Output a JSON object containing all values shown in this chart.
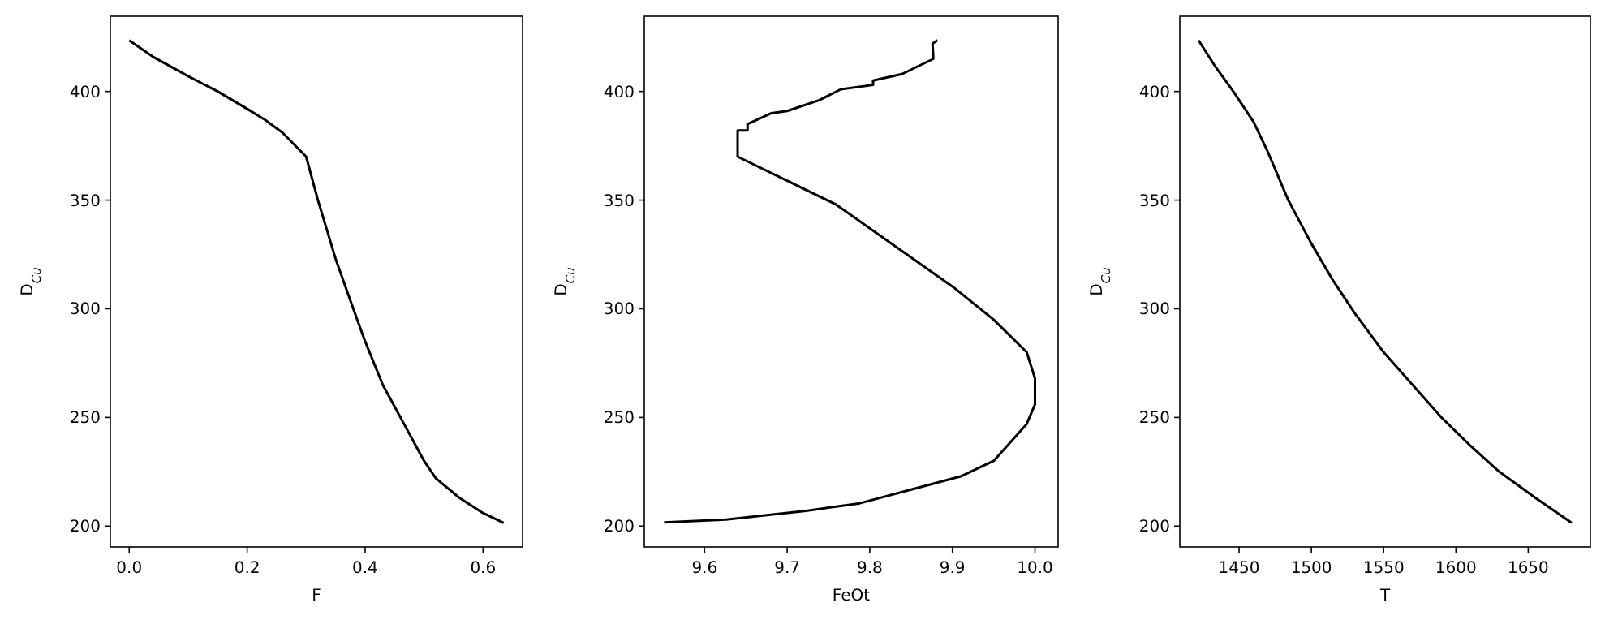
{
  "chart_data": [
    {
      "type": "line",
      "xlabel": "F",
      "ylabel": "D$_{Cu}$",
      "xlim": [
        -0.032,
        0.667
      ],
      "ylim": [
        190.4,
        434.6
      ],
      "xticks": [
        {
          "value": 0,
          "label": "0.0"
        },
        {
          "value": 0.2,
          "label": "0.2"
        },
        {
          "value": 0.4,
          "label": "0.4"
        },
        {
          "value": 0.6,
          "label": "0.6"
        }
      ],
      "yticks": [
        200,
        250,
        300,
        350,
        400
      ],
      "grid": false,
      "series": [
        {
          "color": "#000000",
          "x": [
            0,
            0.04,
            0.1,
            0.15,
            0.2,
            0.23,
            0.26,
            0.3,
            0.32,
            0.35,
            0.38,
            0.4,
            0.43,
            0.46,
            0.5,
            0.52,
            0.56,
            0.6,
            0.635
          ],
          "values": [
            423.5,
            416,
            407,
            400,
            392,
            387,
            381,
            370,
            350,
            323,
            300,
            285,
            265,
            250,
            230,
            222,
            213,
            206,
            201.5
          ]
        }
      ]
    },
    {
      "type": "line",
      "xlabel": "FeOt",
      "ylabel": "D$_{Cu}$",
      "xlim": [
        9.527,
        10.028
      ],
      "ylim": [
        190.4,
        434.6
      ],
      "xticks": [
        9.6,
        9.7,
        9.8,
        9.9,
        {
          "value": 10,
          "label": "10.0"
        }
      ],
      "yticks": [
        200,
        250,
        300,
        350,
        400
      ],
      "grid": false,
      "series": [
        {
          "color": "#000000",
          "x": [
            9.882,
            9.876,
            9.877,
            9.839,
            9.804,
            9.804,
            9.765,
            9.739,
            9.7,
            9.681,
            9.658,
            9.652,
            9.652,
            9.64,
            9.64,
            9.759,
            9.901,
            9.95,
            9.99,
            10.0,
            10.0,
            9.99,
            9.95,
            9.911,
            9.852,
            9.788,
            9.723,
            9.626,
            9.551
          ],
          "values": [
            423.6,
            422,
            415,
            408,
            405,
            403,
            401,
            396,
            391,
            390,
            386,
            385,
            382,
            382,
            370,
            348,
            310,
            295,
            280,
            268,
            256,
            247,
            230,
            223,
            217,
            210.5,
            207,
            203,
            201.7
          ]
        }
      ]
    },
    {
      "type": "line",
      "xlabel": "T",
      "ylabel": "D$_{Cu}$",
      "xlim": [
        1409,
        1693
      ],
      "ylim": [
        190.4,
        434.6
      ],
      "xticks": [
        1450,
        1500,
        1550,
        1600,
        1650
      ],
      "yticks": [
        200,
        250,
        300,
        350,
        400
      ],
      "grid": false,
      "series": [
        {
          "color": "#000000",
          "x": [
            1422,
            1433,
            1446,
            1460,
            1470,
            1484,
            1500,
            1515,
            1530,
            1550,
            1570,
            1590,
            1610,
            1630,
            1655,
            1680
          ],
          "values": [
            423.5,
            412,
            400,
            386,
            372,
            350,
            330,
            313,
            298,
            280,
            265,
            250,
            237,
            225,
            213,
            201.5
          ]
        }
      ]
    }
  ]
}
